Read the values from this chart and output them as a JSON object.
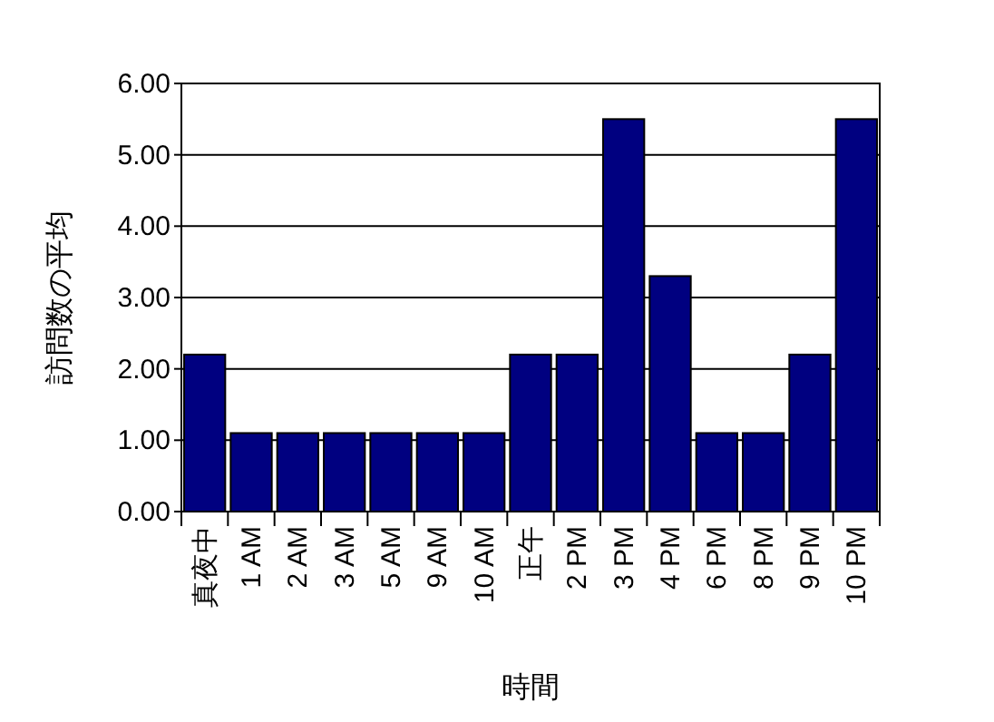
{
  "chart_data": {
    "type": "bar",
    "xlabel": "時間",
    "ylabel": "訪問数の平均",
    "categories": [
      "真夜中",
      "1 AM",
      "2 AM",
      "3 AM",
      "5 AM",
      "9 AM",
      "10 AM",
      "正午",
      "2 PM",
      "3 PM",
      "4 PM",
      "6 PM",
      "8 PM",
      "9 PM",
      "10 PM"
    ],
    "values": [
      2.2,
      1.1,
      1.1,
      1.1,
      1.1,
      1.1,
      1.1,
      2.2,
      2.2,
      5.5,
      3.3,
      1.1,
      1.1,
      2.2,
      5.5
    ],
    "color": "#000080",
    "ylim": [
      0,
      6
    ],
    "yticks": [
      {
        "value": 0,
        "label": "0.00"
      },
      {
        "value": 1,
        "label": "1.00"
      },
      {
        "value": 2,
        "label": "2.00"
      },
      {
        "value": 3,
        "label": "3.00"
      },
      {
        "value": 4,
        "label": "4.00"
      },
      {
        "value": 5,
        "label": "5.00"
      },
      {
        "value": 6,
        "label": "6.00"
      }
    ],
    "grid": "y"
  }
}
